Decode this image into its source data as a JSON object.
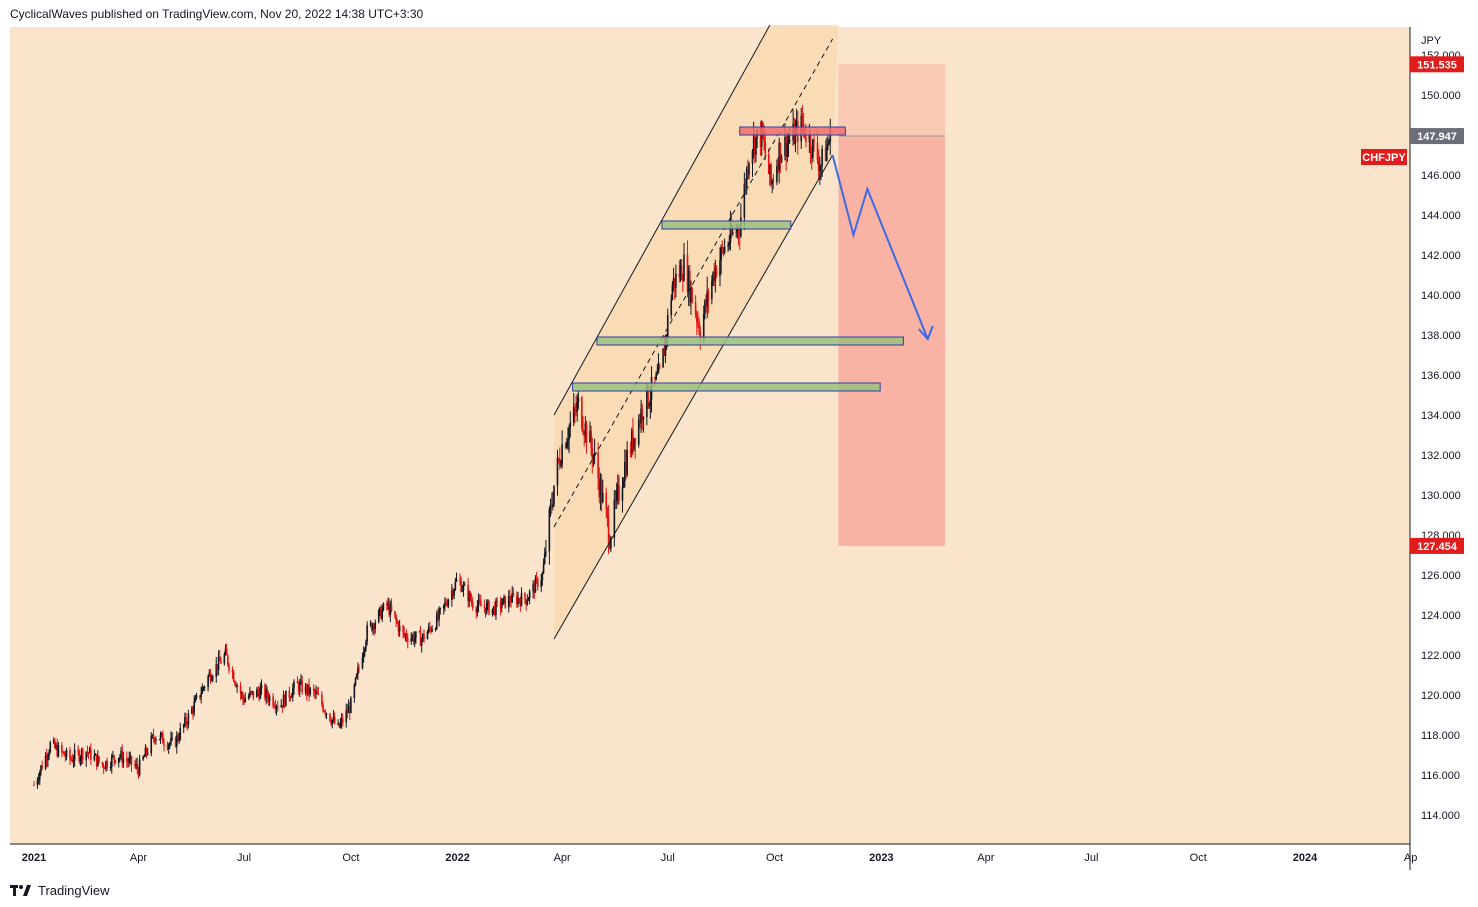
{
  "header": {
    "attribution": "CyclicalWaves published on TradingView.com, Nov 20, 2022 14:38 UTC+3:30"
  },
  "footer": {
    "brand": "TradingView",
    "icon": "tradingview-logo-icon"
  },
  "colors": {
    "background": "#fbe4cc",
    "channel_fill": "#f9d8b0",
    "up_candle": "#131722",
    "down_candle": "#e01414",
    "zone_green": "#9bbf80",
    "zone_red": "#f07070",
    "target_box": "#f8aa9c",
    "stop_box": "#f7c4ae",
    "projection": "#3d6ae0",
    "tag_red": "#e01c1c",
    "tag_gray": "#6b6e78"
  },
  "chart_data": {
    "type": "candlestick",
    "symbol": "CHFJPY",
    "currency": "JPY",
    "y_ticks": [
      "114.000",
      "116.000",
      "118.000",
      "120.000",
      "122.000",
      "124.000",
      "126.000",
      "128.000",
      "130.000",
      "132.000",
      "134.000",
      "136.000",
      "138.000",
      "140.000",
      "142.000",
      "144.000",
      "146.000",
      "148.000",
      "150.000",
      "152.000"
    ],
    "x_ticks": [
      "2021",
      "Apr",
      "Jul",
      "Oct",
      "2022",
      "Apr",
      "Jul",
      "Oct",
      "2023",
      "Apr",
      "Jul",
      "Oct",
      "2024",
      "Ap"
    ],
    "ylim": [
      113,
      153.8
    ],
    "price_tags": [
      {
        "label": "151.535",
        "value": 151.535,
        "color": "tag_red"
      },
      {
        "label": "147.947",
        "value": 147.947,
        "color": "tag_gray"
      },
      {
        "label": "127.454",
        "value": 127.454,
        "color": "tag_red"
      }
    ],
    "symbol_tag": "CHFJPY",
    "price_path": [
      [
        "2021-01-01",
        115.5
      ],
      [
        "2021-01-15",
        117.5
      ],
      [
        "2021-02-01",
        116.8
      ],
      [
        "2021-02-15",
        117.2
      ],
      [
        "2021-03-01",
        116.5
      ],
      [
        "2021-03-15",
        117.0
      ],
      [
        "2021-04-01",
        116.3
      ],
      [
        "2021-04-15",
        118.0
      ],
      [
        "2021-05-01",
        117.5
      ],
      [
        "2021-05-15",
        119.0
      ],
      [
        "2021-06-01",
        121.0
      ],
      [
        "2021-06-15",
        122.0
      ],
      [
        "2021-06-30",
        119.8
      ],
      [
        "2021-07-15",
        120.2
      ],
      [
        "2021-08-01",
        119.5
      ],
      [
        "2021-08-15",
        120.5
      ],
      [
        "2021-09-01",
        120.0
      ],
      [
        "2021-09-20",
        118.3
      ],
      [
        "2021-10-01",
        119.5
      ],
      [
        "2021-10-15",
        123.2
      ],
      [
        "2021-11-01",
        124.5
      ],
      [
        "2021-11-15",
        123.0
      ],
      [
        "2021-12-01",
        122.8
      ],
      [
        "2021-12-15",
        123.8
      ],
      [
        "2022-01-01",
        125.8
      ],
      [
        "2022-01-15",
        124.5
      ],
      [
        "2022-02-01",
        124.3
      ],
      [
        "2022-02-15",
        124.8
      ],
      [
        "2022-03-01",
        124.8
      ],
      [
        "2022-03-15",
        126.0
      ],
      [
        "2022-03-25",
        130.5
      ],
      [
        "2022-04-01",
        132.5
      ],
      [
        "2022-04-15",
        134.5
      ],
      [
        "2022-04-28",
        132.0
      ],
      [
        "2022-05-12",
        128.0
      ],
      [
        "2022-05-25",
        131.5
      ],
      [
        "2022-06-10",
        134.5
      ],
      [
        "2022-06-20",
        135.5
      ],
      [
        "2022-06-25",
        136.0
      ],
      [
        "2022-07-05",
        140.5
      ],
      [
        "2022-07-15",
        141.5
      ],
      [
        "2022-07-29",
        138.3
      ],
      [
        "2022-08-10",
        141.2
      ],
      [
        "2022-08-20",
        142.5
      ],
      [
        "2022-09-01",
        143.5
      ],
      [
        "2022-09-10",
        147.5
      ],
      [
        "2022-09-20",
        148.0
      ],
      [
        "2022-09-28",
        145.5
      ],
      [
        "2022-10-05",
        147.2
      ],
      [
        "2022-10-15",
        147.8
      ],
      [
        "2022-10-25",
        148.5
      ],
      [
        "2022-11-10",
        146.5
      ],
      [
        "2022-11-18",
        147.9
      ]
    ],
    "channel": {
      "upper": [
        [
          "2022-03-25",
          134.0
        ],
        [
          "2022-09-27",
          153.5
        ]
      ],
      "lower": [
        [
          "2022-03-25",
          122.8
        ],
        [
          "2022-11-20",
          147.0
        ]
      ],
      "mid": [
        [
          "2022-03-25",
          128.4
        ],
        [
          "2022-11-20",
          152.8
        ]
      ]
    },
    "zones": [
      {
        "start": "2022-09-01",
        "end": "2022-12-01",
        "bottom": 148.0,
        "top": 148.4,
        "color": "zone_red"
      },
      {
        "start": "2022-06-26",
        "end": "2022-10-15",
        "bottom": 143.3,
        "top": 143.7,
        "color": "zone_green"
      },
      {
        "start": "2022-05-01",
        "end": "2023-01-20",
        "bottom": 137.5,
        "top": 137.9,
        "color": "zone_green"
      },
      {
        "start": "2022-04-10",
        "end": "2022-12-31",
        "bottom": 135.2,
        "top": 135.6,
        "color": "zone_green"
      }
    ],
    "position": {
      "start": "2022-11-25",
      "end": "2023-02-25",
      "entry": 147.947,
      "stop": 151.535,
      "target": 127.454
    },
    "projection": [
      [
        "2022-11-20",
        147.0
      ],
      [
        "2022-12-08",
        143.0
      ],
      [
        "2022-12-20",
        145.3
      ],
      [
        "2023-02-10",
        137.8
      ]
    ]
  }
}
